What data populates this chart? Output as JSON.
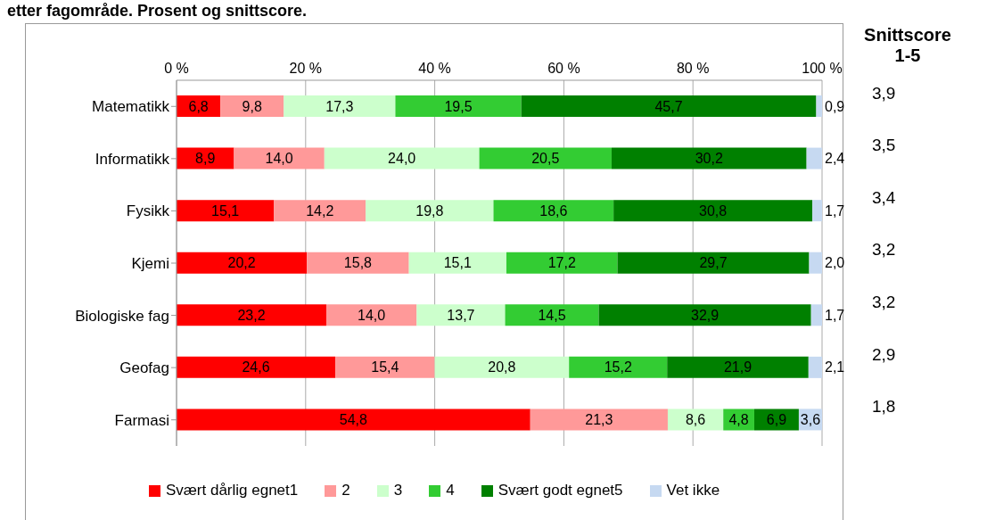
{
  "chart_data": {
    "type": "bar",
    "title": "etter fagområde. Prosent og snittscore.",
    "orientation": "horizontal",
    "stacked": true,
    "grid": "x",
    "legend": "bottom",
    "categories": [
      "Matematikk",
      "Informatikk",
      "Fysikk",
      "Kjemi",
      "Biologiske fag",
      "Geofag",
      "Farmasi"
    ],
    "xlim": [
      0,
      100
    ],
    "xticks": [
      {
        "value": 0,
        "label": "0 %"
      },
      {
        "value": 20,
        "label": "20 %"
      },
      {
        "value": 40,
        "label": "40 %"
      },
      {
        "value": 60,
        "label": "60 %"
      },
      {
        "value": 80,
        "label": "80 %"
      },
      {
        "value": 100,
        "label": "100 %"
      }
    ],
    "series": [
      {
        "name": "Svært dårlig egnet1",
        "color": "#ff0000",
        "values": [
          6.8,
          8.9,
          15.1,
          20.2,
          23.2,
          24.6,
          54.8
        ],
        "value_labels": [
          "6,8",
          "8,9",
          "15,1",
          "20,2",
          "23,2",
          "24,6",
          "54,8"
        ]
      },
      {
        "name": "2",
        "color": "#ff9999",
        "values": [
          9.8,
          14.0,
          14.2,
          15.8,
          14.0,
          15.4,
          21.3
        ],
        "value_labels": [
          "9,8",
          "14,0",
          "14,2",
          "15,8",
          "14,0",
          "15,4",
          "21,3"
        ]
      },
      {
        "name": "3",
        "color": "#ccffcc",
        "values": [
          17.3,
          24.0,
          19.8,
          15.1,
          13.7,
          20.8,
          8.6
        ],
        "value_labels": [
          "17,3",
          "24,0",
          "19,8",
          "15,1",
          "13,7",
          "20,8",
          "8,6"
        ]
      },
      {
        "name": "4",
        "color": "#33cc33",
        "values": [
          19.5,
          20.5,
          18.6,
          17.2,
          14.5,
          15.2,
          4.8
        ],
        "value_labels": [
          "19,5",
          "20,5",
          "18,6",
          "17,2",
          "14,5",
          "15,2",
          "4,8"
        ]
      },
      {
        "name": "Svært godt egnet5",
        "color": "#008000",
        "values": [
          45.7,
          30.2,
          30.8,
          29.7,
          32.9,
          21.9,
          6.9
        ],
        "value_labels": [
          "45,7",
          "30,2",
          "30,8",
          "29,7",
          "32,9",
          "21,9",
          "6,9"
        ]
      },
      {
        "name": "Vet ikke",
        "color": "#c6d9f1",
        "values": [
          0.9,
          2.4,
          1.7,
          2.0,
          1.7,
          2.1,
          3.6
        ],
        "value_labels": [
          "0,9",
          "2,4",
          "1,7",
          "2,0",
          "1,7",
          "2,1",
          "3,6"
        ]
      }
    ],
    "annotations": [
      "Snittscore 1-5",
      "3,9",
      "3,5",
      "3,4",
      "3,2",
      "3,2",
      "2,9",
      "1,8"
    ]
  }
}
